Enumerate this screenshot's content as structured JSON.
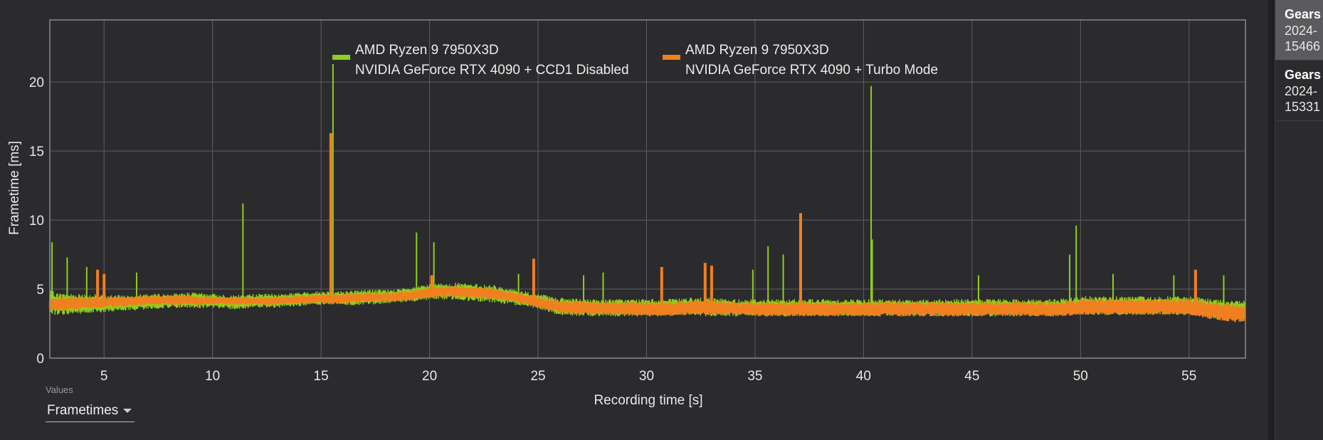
{
  "chart_data": {
    "type": "line",
    "title": "",
    "xlabel": "Recording time [s]",
    "ylabel": "Frametime [ms]",
    "xlim": [
      2.5,
      57.6
    ],
    "ylim": [
      0,
      24.5
    ],
    "x_ticks": [
      5,
      10,
      15,
      20,
      25,
      30,
      35,
      40,
      45,
      50,
      55
    ],
    "y_ticks": [
      0,
      5,
      10,
      15,
      20
    ],
    "grid": true,
    "legend_position": "top",
    "series": [
      {
        "name": "AMD Ryzen 9 7950X3D NVIDIA GeForce RTX 4090 + CCD1 Disabled",
        "label_line1": "AMD Ryzen 9 7950X3D",
        "label_line2": "NVIDIA GeForce RTX 4090 + CCD1 Disabled",
        "color": "#8fce1d",
        "x": [
          2.5,
          3,
          4,
          5,
          6,
          7,
          8,
          9,
          10,
          11,
          12,
          13,
          14,
          15,
          16,
          17,
          18,
          19,
          20,
          21,
          22,
          23,
          24,
          25,
          26,
          27,
          28,
          29,
          30,
          31,
          32,
          33,
          34,
          35,
          36,
          37,
          38,
          39,
          40,
          41,
          42,
          43,
          44,
          45,
          46,
          47,
          48,
          49,
          50,
          51,
          52,
          53,
          54,
          55,
          56,
          57,
          57.6
        ],
        "low": [
          3.3,
          3.2,
          3.3,
          3.4,
          3.5,
          3.6,
          3.7,
          3.7,
          3.7,
          3.6,
          3.7,
          3.7,
          3.8,
          3.9,
          3.9,
          3.9,
          4.0,
          4.1,
          4.3,
          4.3,
          4.2,
          4.1,
          3.9,
          3.6,
          3.2,
          3.1,
          3.1,
          3.1,
          3.1,
          3.1,
          3.2,
          3.1,
          3.1,
          3.1,
          3.1,
          3.1,
          3.1,
          3.1,
          3.1,
          3.1,
          3.1,
          3.1,
          3.1,
          3.1,
          3.1,
          3.1,
          3.1,
          3.1,
          3.2,
          3.2,
          3.2,
          3.2,
          3.2,
          3.2,
          3.0,
          2.9,
          2.9
        ],
        "high": [
          4.8,
          4.6,
          4.6,
          4.5,
          4.5,
          4.6,
          4.6,
          4.7,
          4.6,
          4.5,
          4.6,
          4.6,
          4.7,
          4.8,
          4.8,
          4.9,
          4.9,
          5.0,
          5.3,
          5.4,
          5.3,
          5.2,
          4.9,
          4.6,
          4.3,
          4.2,
          4.2,
          4.2,
          4.2,
          4.2,
          4.3,
          4.3,
          4.2,
          4.2,
          4.2,
          4.2,
          4.2,
          4.2,
          4.2,
          4.2,
          4.2,
          4.2,
          4.2,
          4.2,
          4.2,
          4.2,
          4.2,
          4.2,
          4.4,
          4.4,
          4.4,
          4.4,
          4.4,
          4.4,
          4.2,
          4.1,
          4.1
        ],
        "spikes": [
          {
            "x": 2.6,
            "y": 8.4
          },
          {
            "x": 3.3,
            "y": 7.3
          },
          {
            "x": 4.2,
            "y": 6.6
          },
          {
            "x": 6.5,
            "y": 6.2
          },
          {
            "x": 11.4,
            "y": 11.2
          },
          {
            "x": 15.55,
            "y": 21.3
          },
          {
            "x": 19.4,
            "y": 9.1
          },
          {
            "x": 20.2,
            "y": 8.4
          },
          {
            "x": 24.1,
            "y": 6.1
          },
          {
            "x": 27.1,
            "y": 6.0
          },
          {
            "x": 28.0,
            "y": 6.2
          },
          {
            "x": 34.9,
            "y": 6.4
          },
          {
            "x": 35.6,
            "y": 8.1
          },
          {
            "x": 36.3,
            "y": 7.5
          },
          {
            "x": 40.35,
            "y": 19.7
          },
          {
            "x": 40.4,
            "y": 8.6
          },
          {
            "x": 45.3,
            "y": 6.0
          },
          {
            "x": 49.5,
            "y": 7.5
          },
          {
            "x": 49.8,
            "y": 9.6
          },
          {
            "x": 51.5,
            "y": 6.1
          },
          {
            "x": 54.3,
            "y": 6.0
          },
          {
            "x": 56.6,
            "y": 6.0
          }
        ]
      },
      {
        "name": "AMD Ryzen 9 7950X3D NVIDIA GeForce RTX 4090 + Turbo Mode",
        "label_line1": "AMD Ryzen 9 7950X3D",
        "label_line2": "NVIDIA GeForce RTX 4090 + Turbo Mode",
        "color": "#f0801f",
        "x": [
          2.5,
          3,
          4,
          5,
          6,
          7,
          8,
          9,
          10,
          11,
          12,
          13,
          14,
          15,
          16,
          17,
          18,
          19,
          20,
          21,
          22,
          23,
          24,
          25,
          26,
          27,
          28,
          29,
          30,
          31,
          32,
          33,
          34,
          35,
          36,
          37,
          38,
          39,
          40,
          41,
          42,
          43,
          44,
          45,
          46,
          47,
          48,
          49,
          50,
          51,
          52,
          53,
          54,
          55,
          56,
          57,
          57.6
        ],
        "low": [
          3.5,
          3.5,
          3.6,
          3.7,
          3.8,
          3.9,
          3.9,
          3.9,
          3.9,
          3.9,
          3.9,
          3.9,
          4.0,
          4.0,
          4.0,
          4.1,
          4.1,
          4.2,
          4.4,
          4.5,
          4.4,
          4.3,
          4.1,
          3.7,
          3.3,
          3.2,
          3.2,
          3.2,
          3.1,
          3.1,
          3.2,
          3.2,
          3.2,
          3.1,
          3.1,
          3.1,
          3.1,
          3.1,
          3.1,
          3.1,
          3.1,
          3.1,
          3.1,
          3.1,
          3.1,
          3.1,
          3.1,
          3.1,
          3.2,
          3.2,
          3.2,
          3.2,
          3.2,
          3.2,
          2.9,
          2.7,
          2.7
        ],
        "high": [
          4.3,
          4.4,
          4.4,
          4.4,
          4.4,
          4.5,
          4.5,
          4.5,
          4.4,
          4.4,
          4.4,
          4.4,
          4.5,
          4.6,
          4.6,
          4.7,
          4.7,
          4.8,
          5.1,
          5.2,
          5.1,
          5.0,
          4.7,
          4.4,
          4.1,
          4.1,
          4.0,
          4.0,
          4.0,
          4.0,
          4.1,
          4.1,
          4.0,
          4.0,
          4.0,
          4.0,
          4.0,
          4.0,
          4.0,
          4.0,
          4.0,
          4.0,
          4.0,
          4.0,
          4.0,
          4.0,
          4.0,
          4.0,
          4.2,
          4.2,
          4.2,
          4.2,
          4.2,
          4.2,
          4.0,
          3.8,
          3.8
        ],
        "spikes": [
          {
            "x": 4.7,
            "y": 6.4
          },
          {
            "x": 5.0,
            "y": 6.1
          },
          {
            "x": 15.45,
            "y": 16.3
          },
          {
            "x": 20.1,
            "y": 6.0
          },
          {
            "x": 24.8,
            "y": 7.2
          },
          {
            "x": 30.7,
            "y": 6.6
          },
          {
            "x": 32.7,
            "y": 6.9
          },
          {
            "x": 33.0,
            "y": 6.7
          },
          {
            "x": 37.1,
            "y": 10.5
          },
          {
            "x": 55.3,
            "y": 6.4
          }
        ]
      }
    ]
  },
  "values_control": {
    "caption": "Values",
    "selected": "Frametimes"
  },
  "sidebar": {
    "runs": [
      {
        "title": "Gears",
        "line1": "2024-",
        "line2": "15466",
        "selected": true
      },
      {
        "title": "Gears",
        "line1": "2024-",
        "line2": "15331",
        "selected": false
      }
    ]
  },
  "colors": {
    "background": "#2b2b2e",
    "grid": "#5f5f62",
    "axis": "#8a8a8d"
  }
}
